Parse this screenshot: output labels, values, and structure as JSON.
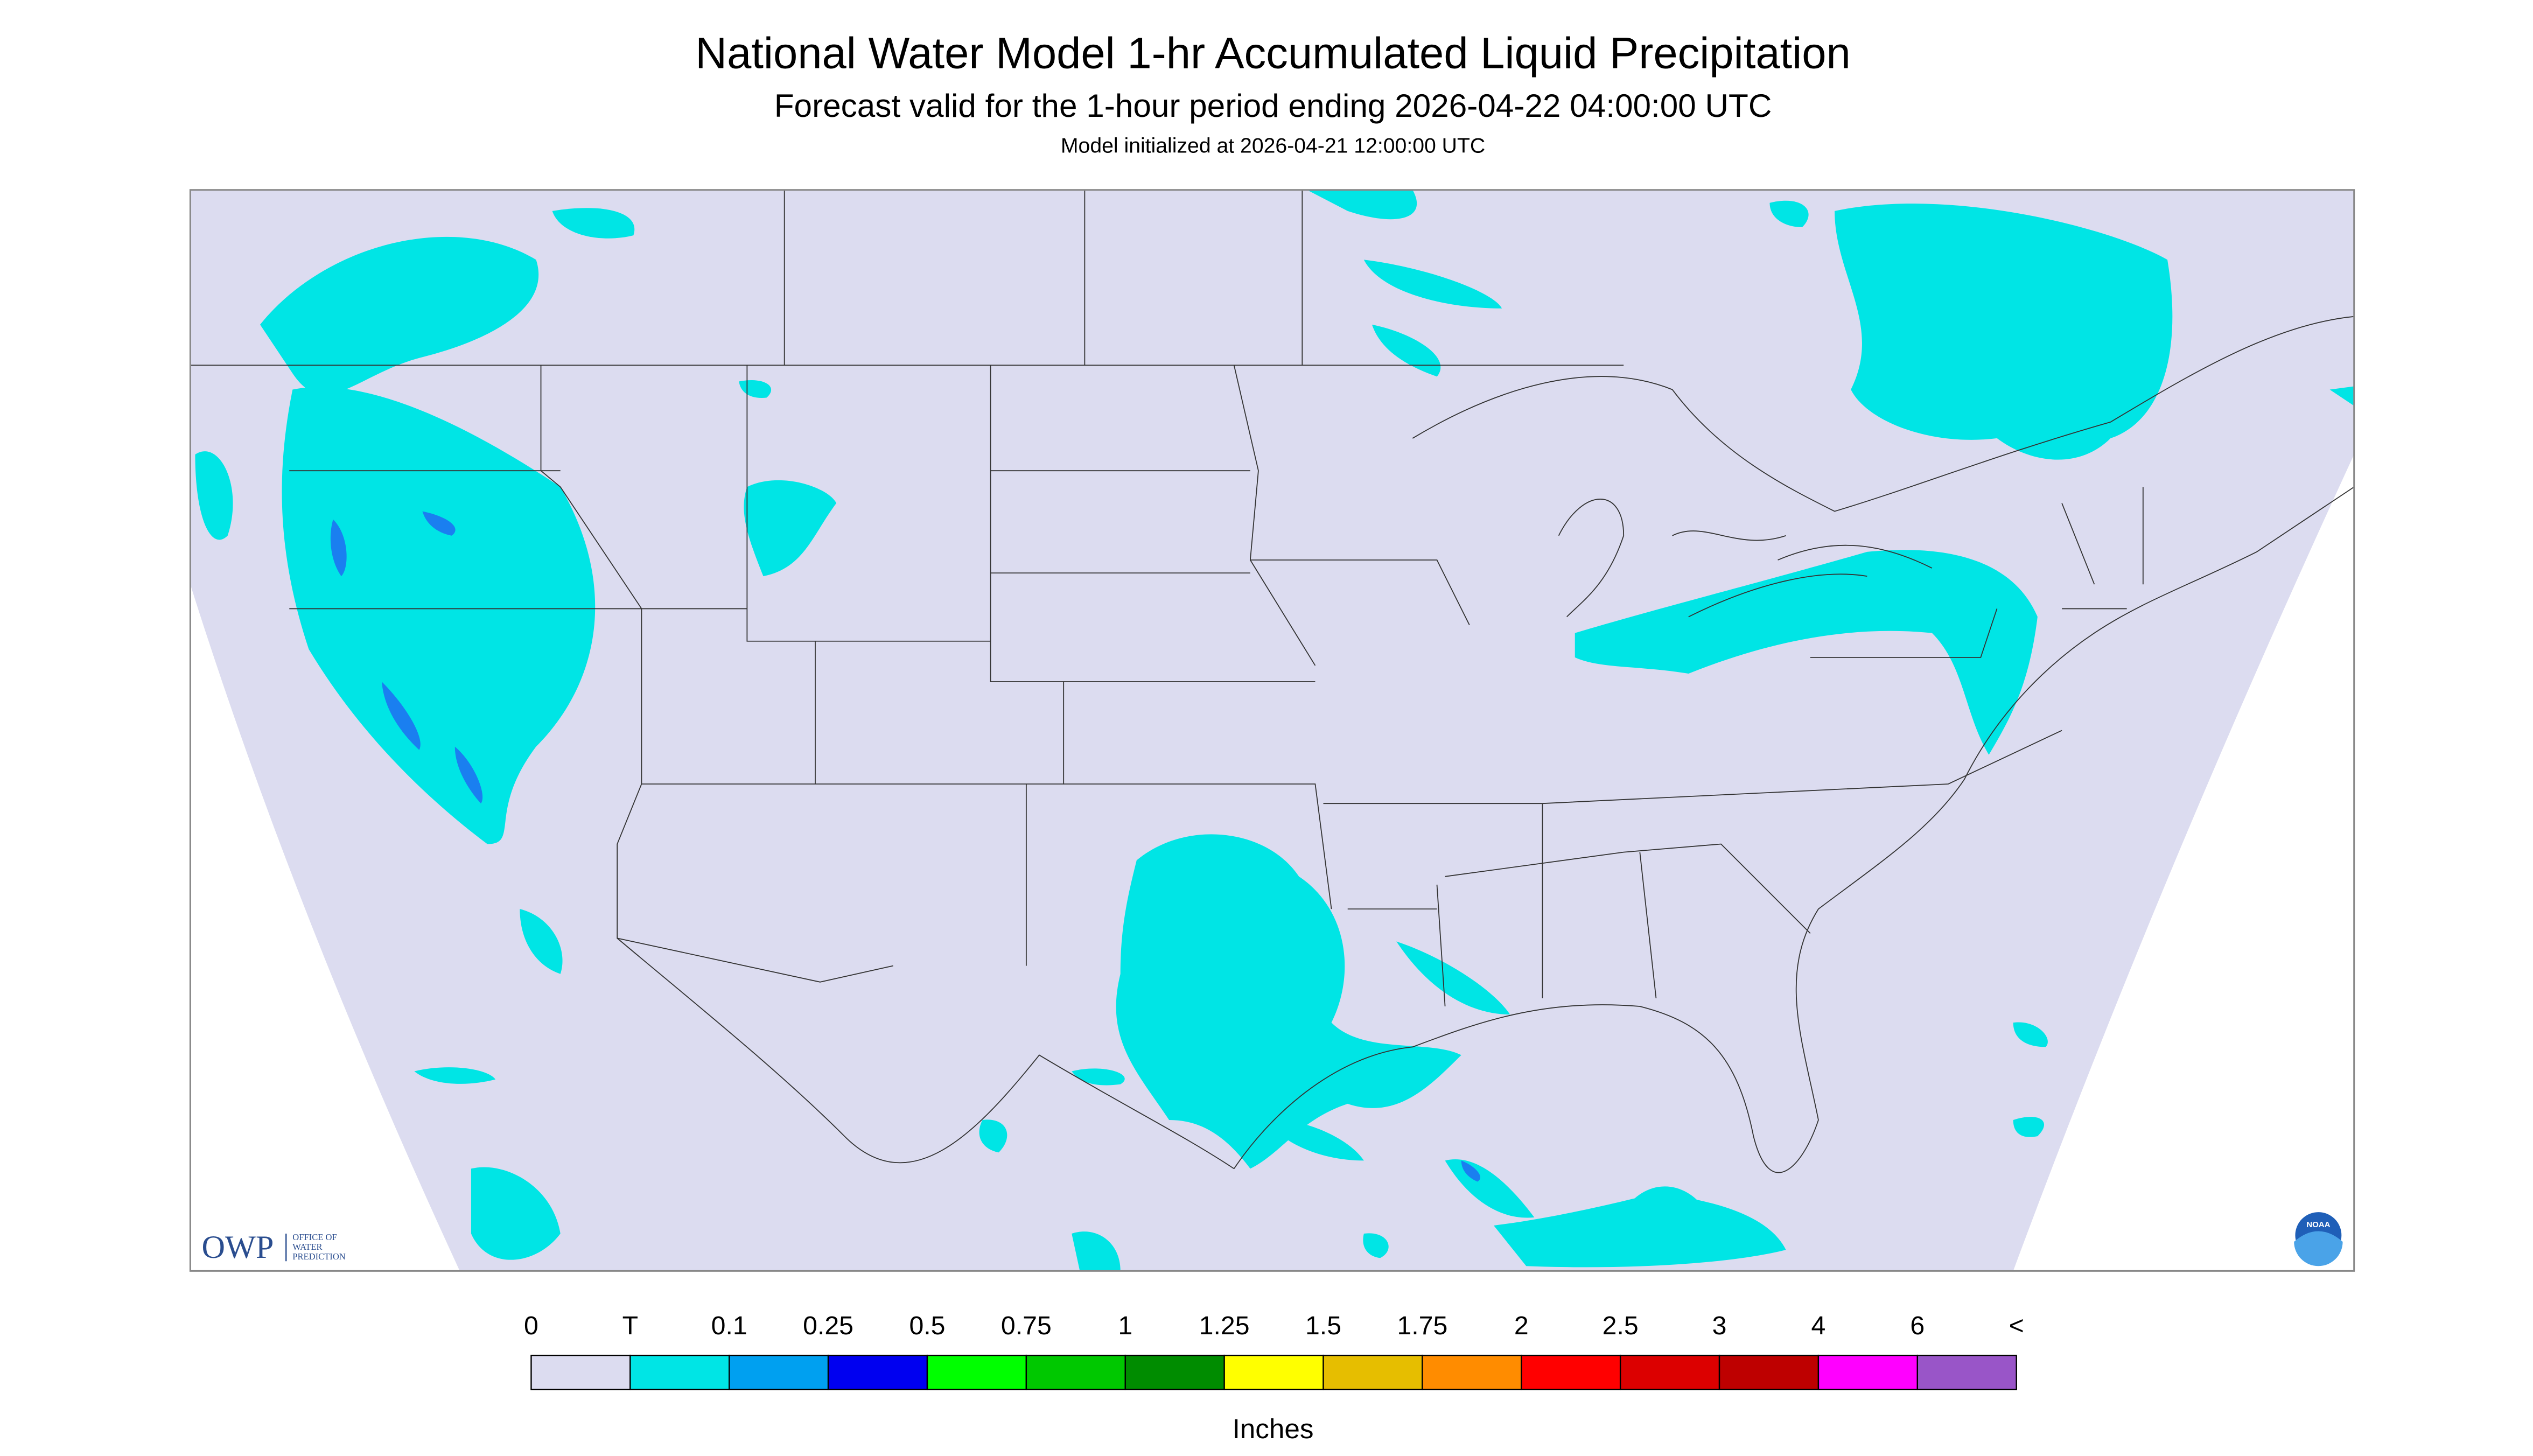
{
  "header": {
    "title": "National Water Model 1-hr Accumulated Liquid Precipitation",
    "subtitle": "Forecast valid for the 1-hour period ending 2026-04-22 04:00:00 UTC",
    "initialized": "Model initialized at 2026-04-21 12:00:00 UTC"
  },
  "logos": {
    "owp": "OWP",
    "owp_name": [
      "OFFICE OF",
      "WATER",
      "PREDICTION"
    ],
    "noaa": "NOAA"
  },
  "legend": {
    "labels": [
      "0",
      "T",
      "0.1",
      "0.25",
      "0.5",
      "0.75",
      "1",
      "1.25",
      "1.5",
      "1.75",
      "2",
      "2.5",
      "3",
      "4",
      "6",
      "<"
    ],
    "colors": [
      "#dcdcf0",
      "#00e5e5",
      "#00a0f0",
      "#0000f0",
      "#00ff00",
      "#00c800",
      "#008c00",
      "#ffff00",
      "#e6be00",
      "#ff8c00",
      "#ff0000",
      "#dc0000",
      "#be0000",
      "#ff00ff",
      "#9955c8"
    ],
    "units": "Inches"
  }
}
